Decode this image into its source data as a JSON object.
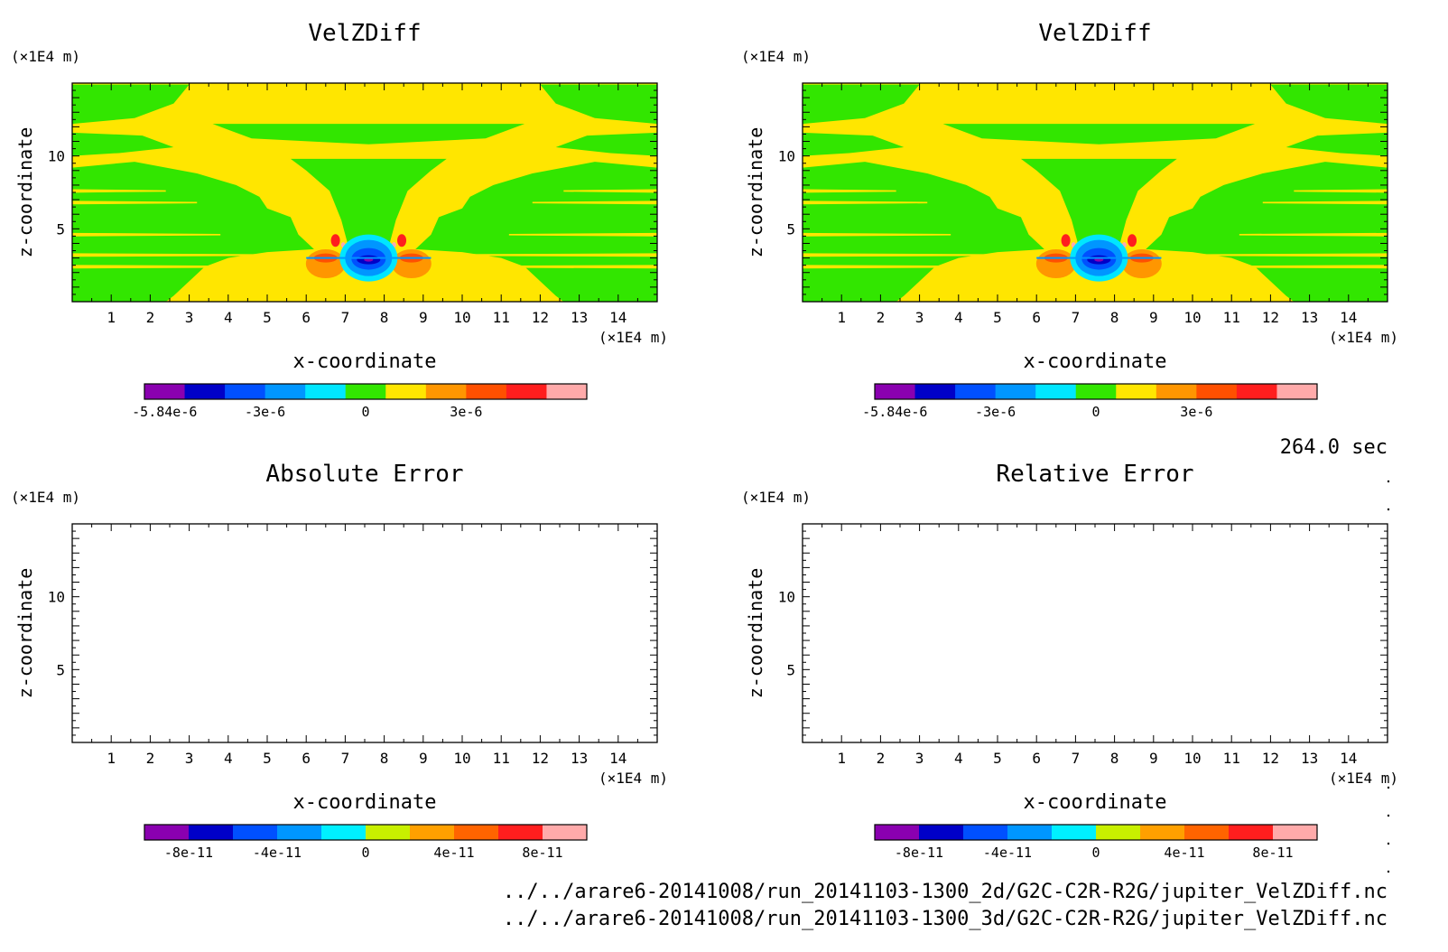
{
  "time_label": "264.0 sec",
  "files": [
    "../../arare6-20141008/run_20141103-1300_2d/G2C-C2R-R2G/jupiter_VelZDiff.nc",
    "../../arare6-20141008/run_20141103-1300_3d/G2C-C2R-R2G/jupiter_VelZDiff.nc"
  ],
  "colors": {
    "field": [
      "#8a00b0",
      "#0000c8",
      "#0050ff",
      "#0096ff",
      "#00e6ff",
      "#32e600",
      "#ffe600",
      "#ff9600",
      "#ff5000",
      "#ff1e1e",
      "#ffaaaa"
    ],
    "error": [
      "#8a00b0",
      "#0000c8",
      "#0050ff",
      "#0096ff",
      "#00f0ff",
      "#c8f000",
      "#ffa000",
      "#ff6400",
      "#ff1e1e",
      "#ffaaaa"
    ],
    "background_field": [
      "#33e600",
      "#ffe600"
    ]
  },
  "chart_data": [
    {
      "type": "heatmap",
      "title": "VelZDiff",
      "xlabel": "x-coordinate",
      "ylabel": "z-coordinate",
      "x_unit": "(×1E4 m)",
      "y_unit": "(×1E4 m)",
      "xlim": [
        0,
        15
      ],
      "ylim": [
        0,
        15
      ],
      "x_ticks": [
        "1",
        "2",
        "3",
        "4",
        "5",
        "6",
        "7",
        "8",
        "9",
        "10",
        "11",
        "12",
        "13",
        "14"
      ],
      "y_ticks": [
        "5",
        "10"
      ],
      "colorbar_labels": [
        "-5.84e-6",
        "-3e-6",
        "0",
        "3e-6"
      ],
      "colorbar_levels": 11,
      "feature": {
        "center_x": 7.6,
        "center_z": 3.0,
        "min_value": -5.84e-06
      }
    },
    {
      "type": "heatmap",
      "title": "VelZDiff",
      "xlabel": "x-coordinate",
      "ylabel": "z-coordinate",
      "x_unit": "(×1E4 m)",
      "y_unit": "(×1E4 m)",
      "xlim": [
        0,
        15
      ],
      "ylim": [
        0,
        15
      ],
      "x_ticks": [
        "1",
        "2",
        "3",
        "4",
        "5",
        "6",
        "7",
        "8",
        "9",
        "10",
        "11",
        "12",
        "13",
        "14"
      ],
      "y_ticks": [
        "5",
        "10"
      ],
      "colorbar_labels": [
        "-5.84e-6",
        "-3e-6",
        "0",
        "3e-6"
      ],
      "colorbar_levels": 11,
      "feature": {
        "center_x": 7.6,
        "center_z": 3.0,
        "min_value": -5.84e-06
      }
    },
    {
      "type": "heatmap",
      "title": "Absolute Error",
      "xlabel": "x-coordinate",
      "ylabel": "z-coordinate",
      "x_unit": "(×1E4 m)",
      "y_unit": "(×1E4 m)",
      "xlim": [
        0,
        15
      ],
      "ylim": [
        0,
        15
      ],
      "x_ticks": [
        "1",
        "2",
        "3",
        "4",
        "5",
        "6",
        "7",
        "8",
        "9",
        "10",
        "11",
        "12",
        "13",
        "14"
      ],
      "y_ticks": [
        "5",
        "10"
      ],
      "colorbar_labels": [
        "-8e-11",
        "-4e-11",
        "0",
        "4e-11",
        "8e-11"
      ],
      "colorbar_levels": 10,
      "empty": true
    },
    {
      "type": "heatmap",
      "title": "Relative Error",
      "xlabel": "x-coordinate",
      "ylabel": "z-coordinate",
      "x_unit": "(×1E4 m)",
      "y_unit": "(×1E4 m)",
      "xlim": [
        0,
        15
      ],
      "ylim": [
        0,
        15
      ],
      "x_ticks": [
        "1",
        "2",
        "3",
        "4",
        "5",
        "6",
        "7",
        "8",
        "9",
        "10",
        "11",
        "12",
        "13",
        "14"
      ],
      "y_ticks": [
        "5",
        "10"
      ],
      "colorbar_labels": [
        "-8e-11",
        "-4e-11",
        "0",
        "4e-11",
        "8e-11"
      ],
      "colorbar_levels": 10,
      "empty": true
    }
  ]
}
